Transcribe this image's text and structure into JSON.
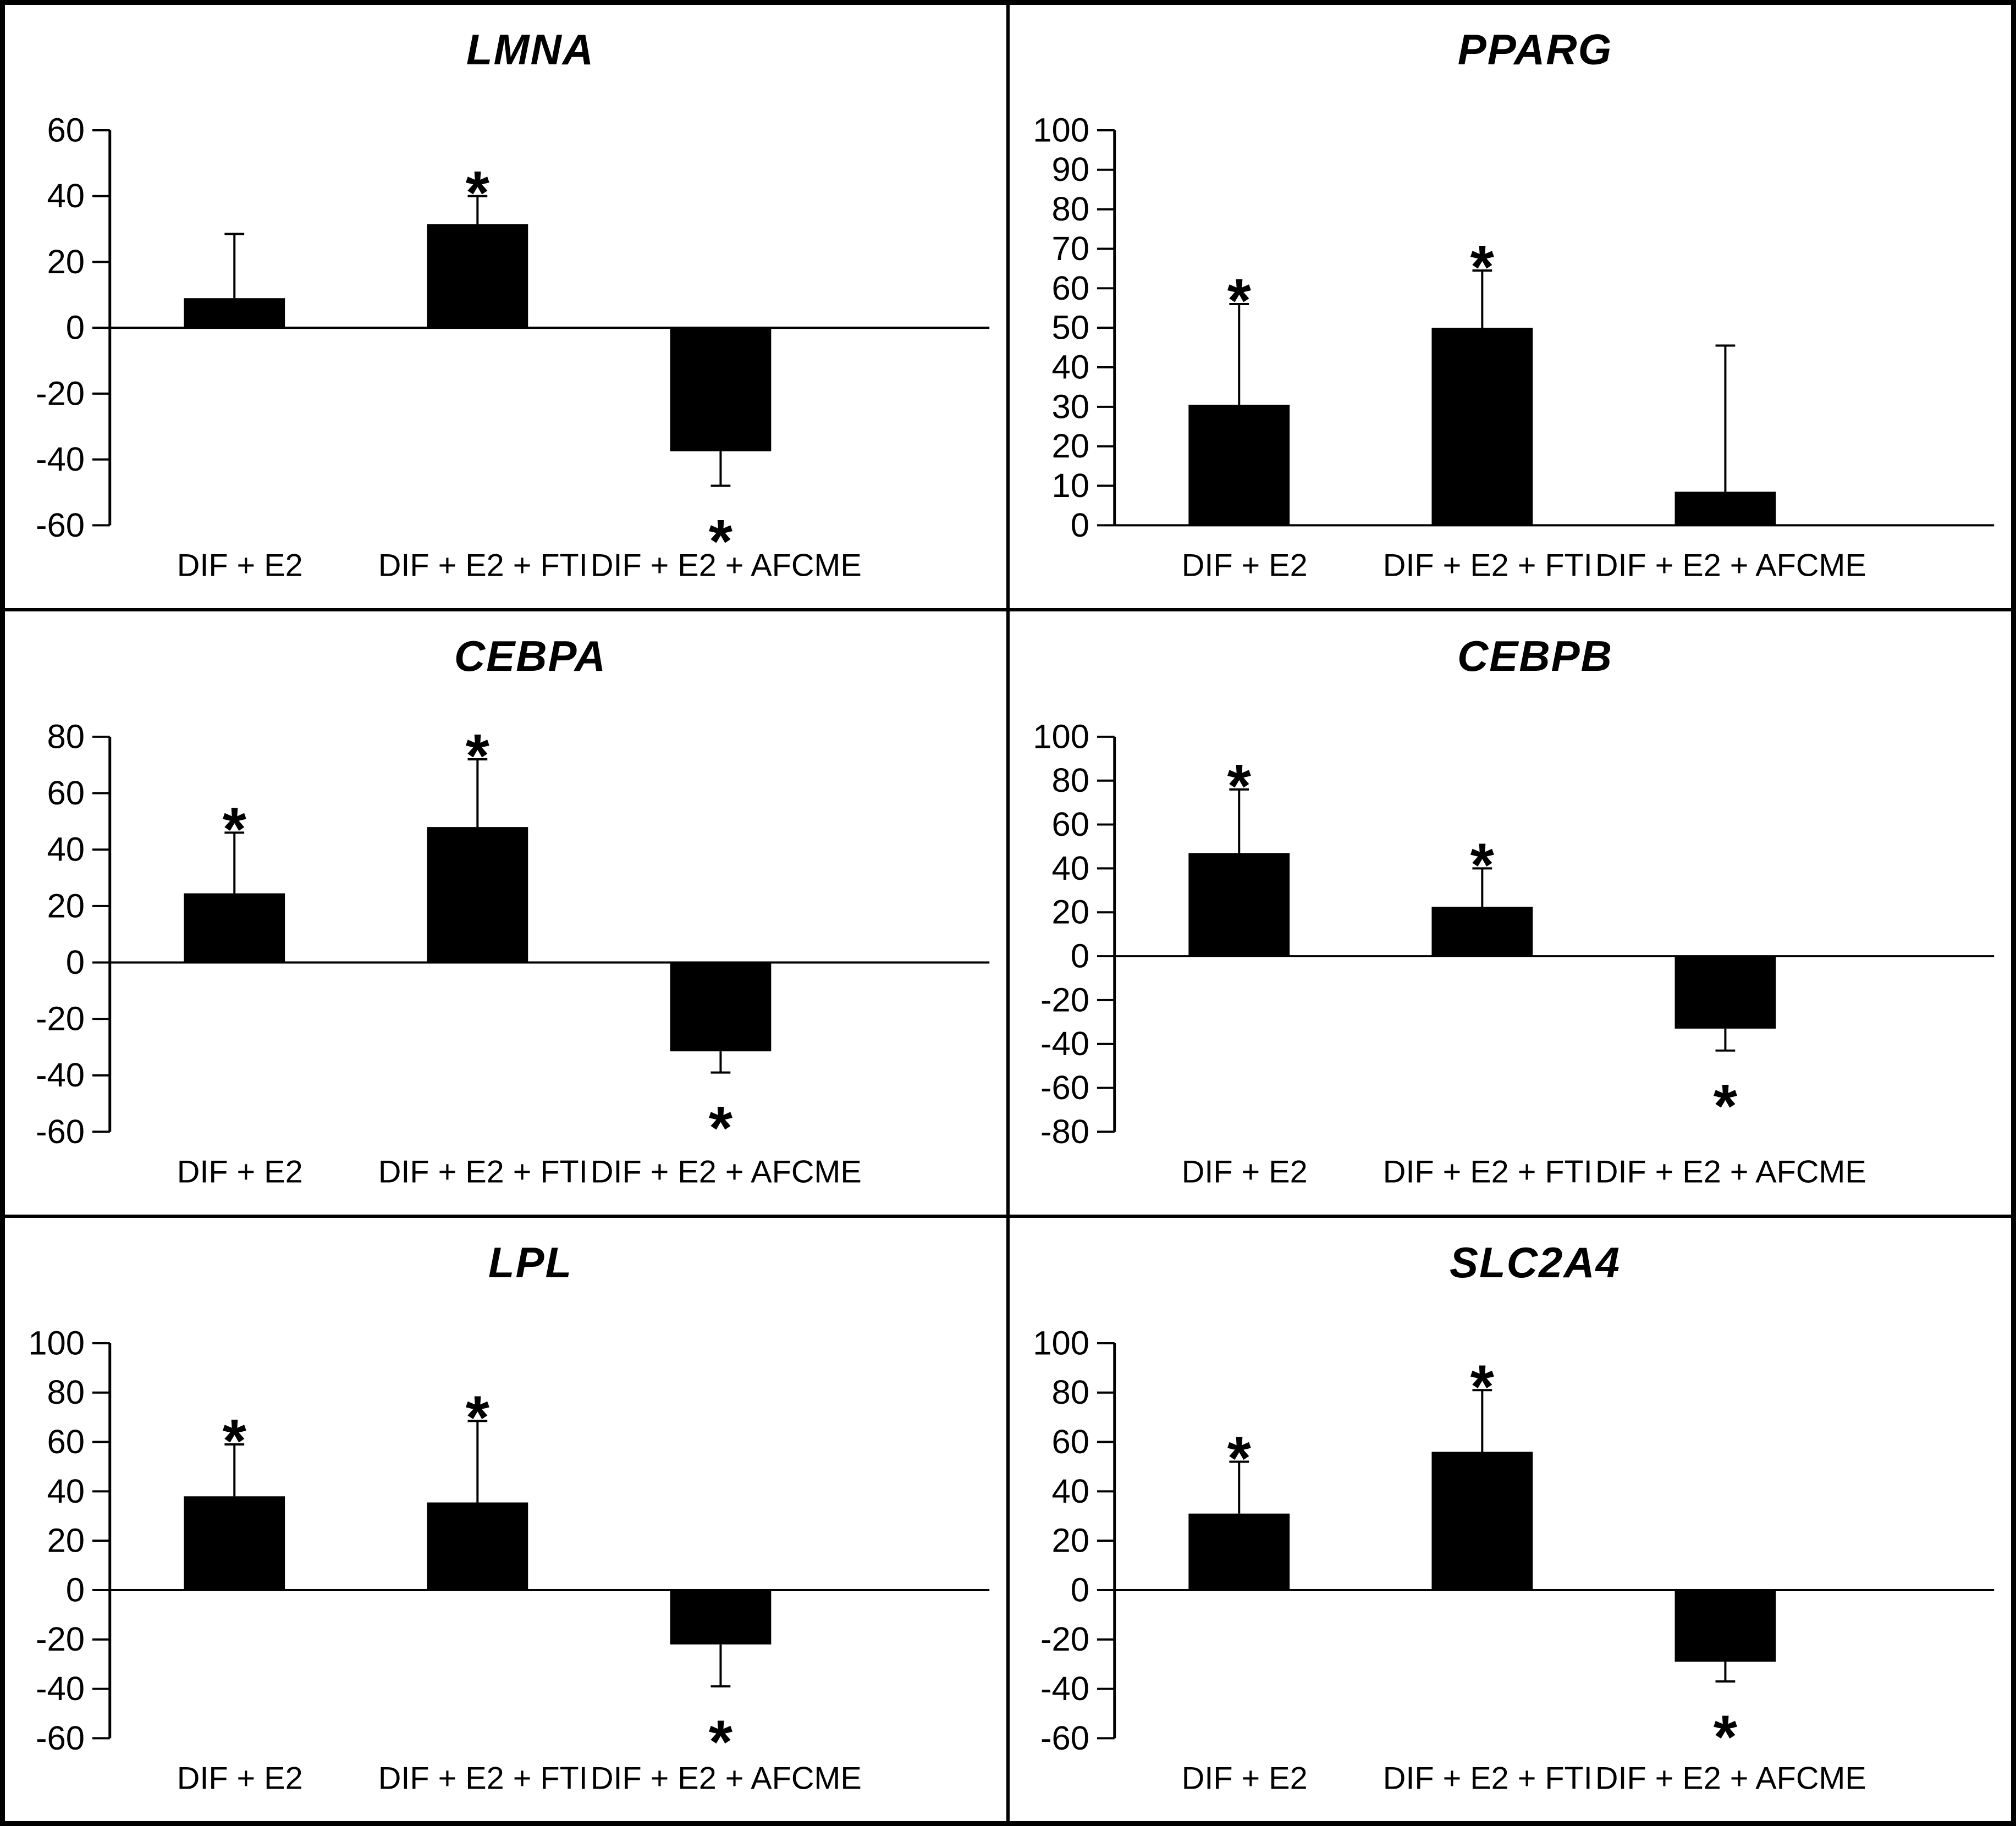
{
  "figure": {
    "description_colors": {
      "bar_fill": "#000000",
      "axis": "#000000",
      "background": "#ffffff"
    },
    "significance_marker": "*"
  },
  "chart_data": [
    {
      "type": "bar",
      "title": "LMNA",
      "categories": [
        "DIF + E2",
        "DIF + E2 + FTI",
        "DIF + E2 + AFCME"
      ],
      "values": [
        9,
        31.5,
        -37.5
      ],
      "error_plus": [
        19.5,
        8.5,
        10.5
      ],
      "significant": [
        false,
        true,
        true
      ],
      "ylim": [
        -60,
        60
      ],
      "ytick_step": 20,
      "xlabel": "",
      "ylabel": "",
      "grid": "off",
      "legend": "none"
    },
    {
      "type": "bar",
      "title": "PPARG",
      "categories": [
        "DIF + E2",
        "DIF + E2 + FTI",
        "DIF + E2 + AFCME"
      ],
      "values": [
        30.5,
        50,
        8.5
      ],
      "error_plus": [
        25.5,
        14.5,
        37
      ],
      "significant": [
        true,
        true,
        false
      ],
      "ylim": [
        0,
        100
      ],
      "ytick_step": 10,
      "xlabel": "",
      "ylabel": "",
      "grid": "off",
      "legend": "none"
    },
    {
      "type": "bar",
      "title": "CEBPA",
      "categories": [
        "DIF + E2",
        "DIF + E2 + FTI",
        "DIF + E2 + AFCME"
      ],
      "values": [
        24.5,
        48,
        -31.5
      ],
      "error_plus": [
        21.5,
        24,
        7.5
      ],
      "significant": [
        true,
        true,
        true
      ],
      "ylim": [
        -60,
        80
      ],
      "ytick_step": 20,
      "xlabel": "",
      "ylabel": "",
      "grid": "off",
      "legend": "none"
    },
    {
      "type": "bar",
      "title": "CEBPB",
      "categories": [
        "DIF + E2",
        "DIF + E2 + FTI",
        "DIF + E2 + AFCME"
      ],
      "values": [
        47,
        22.5,
        -33
      ],
      "error_plus": [
        29,
        17.5,
        10
      ],
      "significant": [
        true,
        true,
        true
      ],
      "ylim": [
        -80,
        100
      ],
      "ytick_step": 20,
      "xlabel": "",
      "ylabel": "",
      "grid": "off",
      "legend": "none"
    },
    {
      "type": "bar",
      "title": "LPL",
      "categories": [
        "DIF + E2",
        "DIF + E2 + FTI",
        "DIF + E2 + AFCME"
      ],
      "values": [
        38,
        35.5,
        -22
      ],
      "error_plus": [
        21,
        33,
        17
      ],
      "significant": [
        true,
        true,
        true
      ],
      "ylim": [
        -60,
        100
      ],
      "ytick_step": 20,
      "xlabel": "",
      "ylabel": "",
      "grid": "off",
      "legend": "none"
    },
    {
      "type": "bar",
      "title": "SLC2A4",
      "categories": [
        "DIF + E2",
        "DIF + E2 + FTI",
        "DIF + E2 + AFCME"
      ],
      "values": [
        31,
        56,
        -29
      ],
      "error_plus": [
        21,
        25,
        8
      ],
      "significant": [
        true,
        true,
        true
      ],
      "ylim": [
        -60,
        100
      ],
      "ytick_step": 20,
      "xlabel": "",
      "ylabel": "",
      "grid": "off",
      "legend": "none"
    }
  ]
}
